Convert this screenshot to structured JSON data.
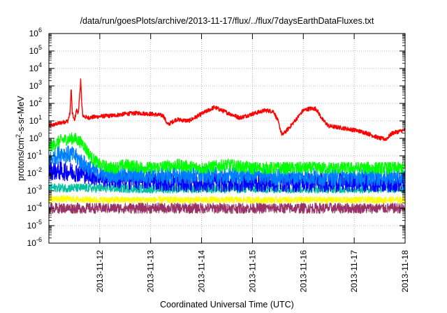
{
  "chart_data": {
    "type": "line",
    "title": "/data/run/goesPlots/archive/2013-11-17/flux/../flux/7daysEarthDataFluxes.txt",
    "xlabel": "Coordinated Universal Time (UTC)",
    "ylabel": {
      "prefix": "protons/cm",
      "sup": "2",
      "suffix": "-s-sr-MeV"
    },
    "y_scale": "log",
    "ylim_exp": [
      -6,
      6
    ],
    "y_ticks": [
      {
        "base": "10",
        "exp": "6"
      },
      {
        "base": "10",
        "exp": "5"
      },
      {
        "base": "10",
        "exp": "4"
      },
      {
        "base": "10",
        "exp": "3"
      },
      {
        "base": "10",
        "exp": "2"
      },
      {
        "base": "10",
        "exp": "1"
      },
      {
        "base": "10",
        "exp": "0"
      },
      {
        "base": "10",
        "exp": "-1"
      },
      {
        "base": "10",
        "exp": "-2"
      },
      {
        "base": "10",
        "exp": "-3"
      },
      {
        "base": "10",
        "exp": "-4"
      },
      {
        "base": "10",
        "exp": "-5"
      },
      {
        "base": "10",
        "exp": "-6"
      }
    ],
    "xlim": [
      "2013-11-11T00:00",
      "2013-11-18T00:00"
    ],
    "x_ticks": [
      "2013-11-12",
      "2013-11-13",
      "2013-11-14",
      "2013-11-15",
      "2013-11-16",
      "2013-11-17",
      "2013-11-18"
    ],
    "grid": true,
    "series": [
      {
        "color": "#ff0000",
        "x": [
          "2013-11-11T00:00",
          "2013-11-11T06:00",
          "2013-11-11T09:00",
          "2013-11-11T10:00",
          "2013-11-11T10:30",
          "2013-11-11T11:00",
          "2013-11-11T12:00",
          "2013-11-11T13:00",
          "2013-11-11T14:00",
          "2013-11-11T15:00",
          "2013-11-11T15:30",
          "2013-11-11T16:00",
          "2013-11-11T18:00",
          "2013-11-12T00:00",
          "2013-11-12T06:00",
          "2013-11-12T12:00",
          "2013-11-12T18:00",
          "2013-11-13T00:00",
          "2013-11-13T06:00",
          "2013-11-13T08:00",
          "2013-11-13T12:00",
          "2013-11-13T18:00",
          "2013-11-14T00:00",
          "2013-11-14T06:00",
          "2013-11-14T12:00",
          "2013-11-14T18:00",
          "2013-11-15T00:00",
          "2013-11-15T06:00",
          "2013-11-15T10:00",
          "2013-11-15T12:00",
          "2013-11-15T14:00",
          "2013-11-15T18:00",
          "2013-11-16T00:00",
          "2013-11-16T03:00",
          "2013-11-16T06:00",
          "2013-11-16T09:00",
          "2013-11-16T12:00",
          "2013-11-16T18:00",
          "2013-11-17T00:00",
          "2013-11-17T06:00",
          "2013-11-17T12:00",
          "2013-11-17T15:00",
          "2013-11-17T18:00",
          "2013-11-18T00:00"
        ],
        "y": [
          5,
          8,
          10,
          30,
          800,
          30,
          10,
          40,
          30,
          2500,
          80,
          20,
          15,
          18,
          20,
          25,
          28,
          25,
          20,
          6,
          12,
          10,
          25,
          60,
          30,
          15,
          25,
          40,
          35,
          10,
          1.5,
          5,
          40,
          50,
          50,
          12,
          5,
          4,
          3,
          2,
          1,
          0.9,
          2,
          3
        ]
      },
      {
        "color": "#00ff00",
        "x": [
          "2013-11-11T00:00",
          "2013-11-11T06:00",
          "2013-11-11T12:00",
          "2013-11-11T16:00",
          "2013-11-11T20:00",
          "2013-11-12T00:00",
          "2013-11-12T06:00",
          "2013-11-12T12:00",
          "2013-11-13T00:00",
          "2013-11-13T12:00",
          "2013-11-14T00:00",
          "2013-11-14T12:00",
          "2013-11-15T00:00",
          "2013-11-15T12:00",
          "2013-11-16T00:00",
          "2013-11-16T12:00",
          "2013-11-17T00:00",
          "2013-11-17T12:00",
          "2013-11-18T00:00"
        ],
        "y": [
          0.3,
          0.8,
          1,
          0.5,
          0.08,
          0.03,
          0.02,
          0.03,
          0.02,
          0.03,
          0.02,
          0.03,
          0.02,
          0.02,
          0.02,
          0.02,
          0.02,
          0.02,
          0.02
        ]
      },
      {
        "color": "#0080ff",
        "x": [
          "2013-11-11T00:00",
          "2013-11-11T06:00",
          "2013-11-11T12:00",
          "2013-11-11T16:00",
          "2013-11-11T20:00",
          "2013-11-12T00:00",
          "2013-11-12T12:00",
          "2013-11-13T00:00",
          "2013-11-13T12:00",
          "2013-11-14T00:00",
          "2013-11-14T12:00",
          "2013-11-15T00:00",
          "2013-11-15T12:00",
          "2013-11-16T00:00",
          "2013-11-16T12:00",
          "2013-11-17T00:00",
          "2013-11-17T12:00",
          "2013-11-18T00:00"
        ],
        "y": [
          0.06,
          0.15,
          0.1,
          0.04,
          0.015,
          0.01,
          0.008,
          0.008,
          0.007,
          0.008,
          0.007,
          0.008,
          0.006,
          0.007,
          0.006,
          0.006,
          0.006,
          0.006
        ]
      },
      {
        "color": "#0000ff",
        "x": [
          "2013-11-11T00:00",
          "2013-11-11T12:00",
          "2013-11-12T00:00",
          "2013-11-12T12:00",
          "2013-11-13T00:00",
          "2013-11-13T12:00",
          "2013-11-14T00:00",
          "2013-11-14T12:00",
          "2013-11-15T00:00",
          "2013-11-15T12:00",
          "2013-11-16T00:00",
          "2013-11-16T12:00",
          "2013-11-17T00:00",
          "2013-11-17T12:00",
          "2013-11-18T00:00"
        ],
        "y": [
          0.015,
          0.012,
          0.006,
          0.004,
          0.004,
          0.003,
          0.003,
          0.003,
          0.003,
          0.003,
          0.003,
          0.003,
          0.003,
          0.003,
          0.003
        ]
      },
      {
        "color": "#00c0a0",
        "x": [
          "2013-11-11T00:00",
          "2013-11-12T00:00",
          "2013-11-13T00:00",
          "2013-11-14T00:00",
          "2013-11-15T00:00",
          "2013-11-16T00:00",
          "2013-11-17T00:00",
          "2013-11-18T00:00"
        ],
        "y": [
          0.0015,
          0.0014,
          0.0013,
          0.0013,
          0.0013,
          0.0013,
          0.0013,
          0.0013
        ]
      },
      {
        "color": "#ffff00",
        "x": [
          "2013-11-11T00:00",
          "2013-11-12T00:00",
          "2013-11-13T00:00",
          "2013-11-14T00:00",
          "2013-11-15T00:00",
          "2013-11-16T00:00",
          "2013-11-17T00:00",
          "2013-11-18T00:00"
        ],
        "y": [
          0.00035,
          0.0003,
          0.0003,
          0.0003,
          0.0003,
          0.0003,
          0.0003,
          0.0003
        ]
      },
      {
        "color": "#993366",
        "x": [
          "2013-11-11T00:00",
          "2013-11-12T00:00",
          "2013-11-13T00:00",
          "2013-11-14T00:00",
          "2013-11-15T00:00",
          "2013-11-16T00:00",
          "2013-11-17T00:00",
          "2013-11-18T00:00"
        ],
        "y": [
          0.0001,
          0.0001,
          0.0001,
          0.0001,
          0.0001,
          0.0001,
          0.0001,
          0.0001
        ]
      }
    ]
  }
}
